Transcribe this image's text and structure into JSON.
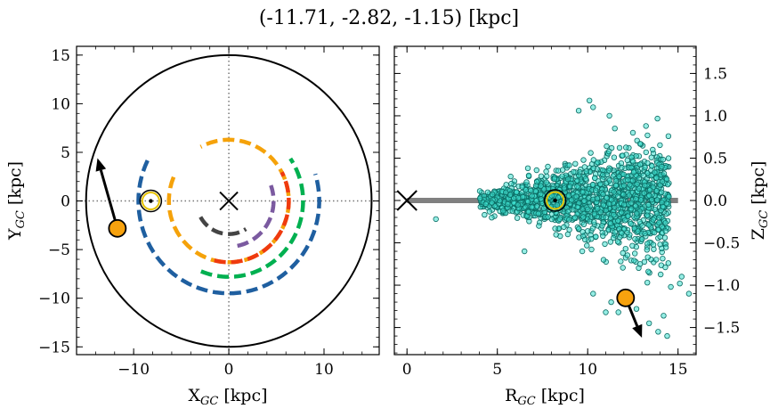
{
  "title": "(-11.71, -2.82, -1.15) [kpc]",
  "chart_data": [
    {
      "type": "line",
      "panel": "left",
      "xlabel_main": "X",
      "xlabel_sub": "GC",
      "xlabel_unit": " [kpc]",
      "ylabel_main": "Y",
      "ylabel_sub": "GC",
      "ylabel_unit": " [kpc]",
      "xlim": [
        -16,
        15.8
      ],
      "ylim": [
        -15.8,
        15.9
      ],
      "xticks": [
        -10,
        0,
        10
      ],
      "yticks": [
        -15,
        -10,
        -5,
        0,
        5,
        10,
        15
      ],
      "tick_labels_x": [
        "−10",
        "0",
        "10"
      ],
      "tick_labels_y": [
        "−15",
        "−10",
        "−5",
        "0",
        "5",
        "10",
        "15"
      ],
      "boundary_circle_radius": 15,
      "center_marker": [
        0,
        0
      ],
      "sun_position": [
        -8.2,
        0
      ],
      "object_position": [
        -11.71,
        -2.82
      ],
      "object_arrow_tip": [
        -13.8,
        4.4
      ],
      "arcs": [
        {
          "color": "#1f5fa0",
          "radius": 9.5,
          "angle_start": 154,
          "angle_end": 17
        },
        {
          "color": "#00b050",
          "radius": 7.8,
          "angle_start": 248,
          "angle_end": 34
        },
        {
          "color": "#f5a20a",
          "radius": 6.3,
          "angle_start": 157,
          "angle_end": 118
        },
        {
          "color": "#ef3a0f",
          "radius": 6.3,
          "angle_start": 256,
          "angle_end": 28
        },
        {
          "color": "#7b5aa0",
          "radius": 4.7,
          "angle_start": 281,
          "angle_end": 20
        },
        {
          "color": "#444444",
          "radius": 3.4,
          "angle_start": 209,
          "angle_end": 302
        }
      ]
    },
    {
      "type": "scatter",
      "panel": "right",
      "xlabel_main": "R",
      "xlabel_sub": "GC",
      "xlabel_unit": " [kpc]",
      "ylabel_main": "Z",
      "ylabel_sub": "GC",
      "ylabel_unit": " [kpc]",
      "xlim": [
        -0.7,
        16
      ],
      "ylim": [
        -1.82,
        1.82
      ],
      "xticks": [
        0,
        5,
        10,
        15
      ],
      "yticks": [
        -1.5,
        -1.0,
        -0.5,
        0.0,
        0.5,
        1.0,
        1.5
      ],
      "tick_labels_x": [
        "0",
        "5",
        "10",
        "15"
      ],
      "tick_labels_y": [
        "−1.5",
        "−1.0",
        "−0.5",
        "0.0",
        "0.5",
        "1.0",
        "1.5"
      ],
      "disk_line": {
        "x": [
          0,
          15
        ],
        "y": 0,
        "color": "#808080"
      },
      "center_marker": [
        0,
        0
      ],
      "sun_position": [
        8.2,
        0
      ],
      "object_position": [
        12.1,
        -1.15
      ],
      "object_arrow_tip": [
        13.0,
        -1.62
      ],
      "scatter_color": "#40e0d0",
      "scatter_description_points": [
        [
          1.6,
          -0.22
        ],
        [
          10.1,
          1.18
        ],
        [
          10.3,
          1.1
        ],
        [
          11.2,
          1.0
        ],
        [
          9.5,
          1.06
        ],
        [
          11.5,
          0.85
        ],
        [
          12.5,
          0.8
        ],
        [
          12.9,
          0.67
        ],
        [
          13.6,
          0.6
        ],
        [
          14.1,
          0.4
        ],
        [
          10.3,
          -1.1
        ],
        [
          11.3,
          -1.2
        ],
        [
          11.7,
          -1.32
        ],
        [
          12.7,
          -1.28
        ],
        [
          13.4,
          -1.45
        ],
        [
          14.2,
          -1.36
        ],
        [
          14.6,
          -1.02
        ],
        [
          15.1,
          -0.98
        ],
        [
          15.6,
          -1.1
        ],
        [
          15.2,
          -0.9
        ],
        [
          7.3,
          -0.3
        ],
        [
          8.9,
          -0.4
        ],
        [
          9.7,
          -0.6
        ],
        [
          12.9,
          -0.75
        ],
        [
          6.5,
          -0.6
        ],
        [
          7.8,
          0.4
        ],
        [
          13.3,
          -0.97
        ],
        [
          13.9,
          -1.55
        ],
        [
          14.4,
          -1.6
        ],
        [
          11.0,
          -1.32
        ]
      ]
    }
  ]
}
